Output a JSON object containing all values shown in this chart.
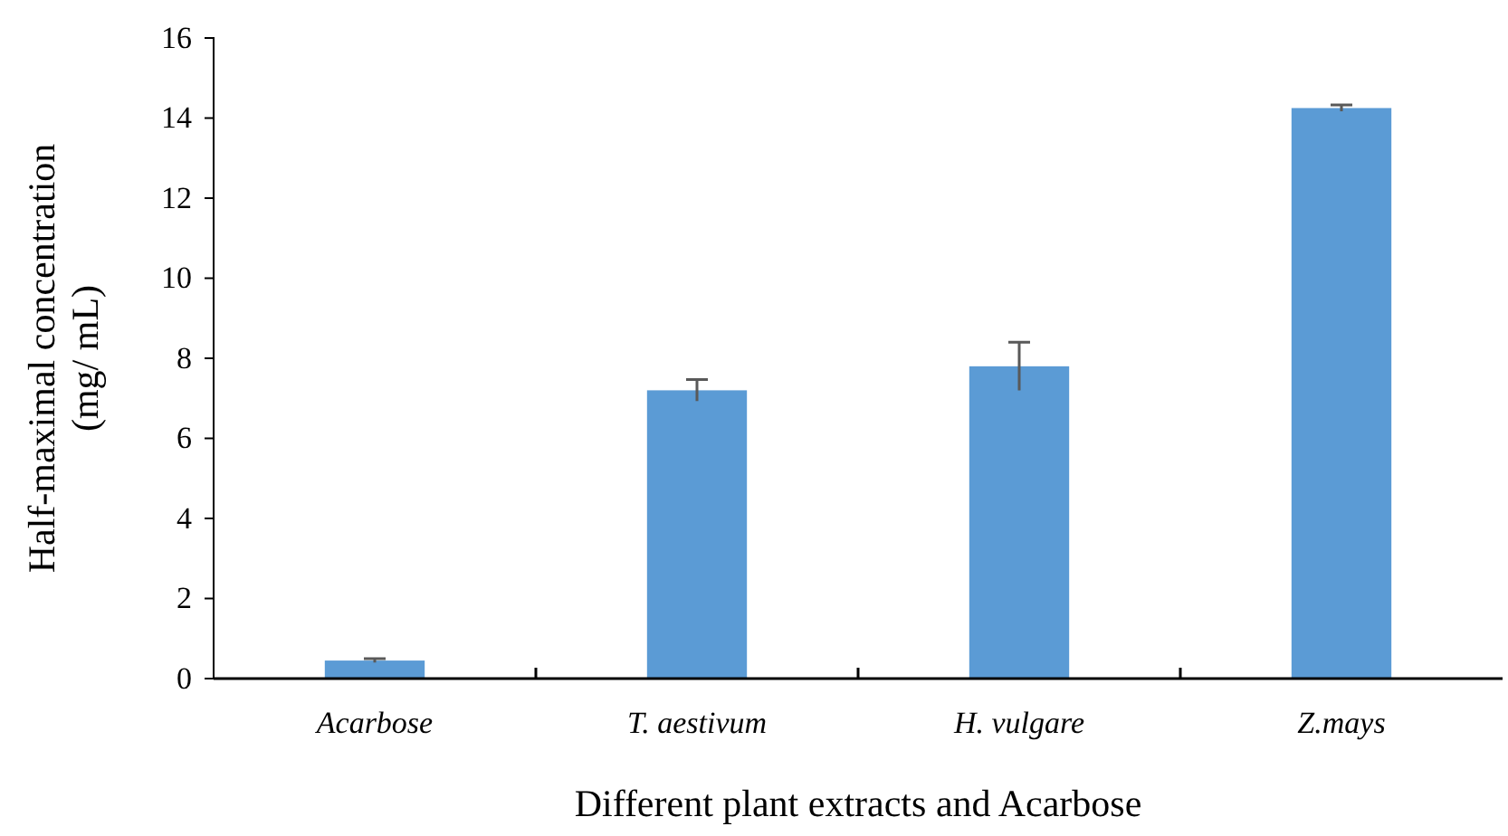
{
  "chart_data": {
    "type": "bar",
    "categories": [
      "Acarbose",
      "T. aestivum",
      "H. vulgare",
      "Z.mays"
    ],
    "values": [
      0.45,
      7.2,
      7.8,
      14.25
    ],
    "errors": [
      0.05,
      0.27,
      0.6,
      0.08
    ],
    "color": "#5b9bd5",
    "xlabel": "Different plant extracts and Acarbose",
    "ylabel": "Half-maximal concentration\n(mg/ mL)",
    "ylim": [
      0,
      16
    ],
    "yticks": [
      0,
      2,
      4,
      6,
      8,
      10,
      12,
      14,
      16
    ],
    "grid": false
  }
}
